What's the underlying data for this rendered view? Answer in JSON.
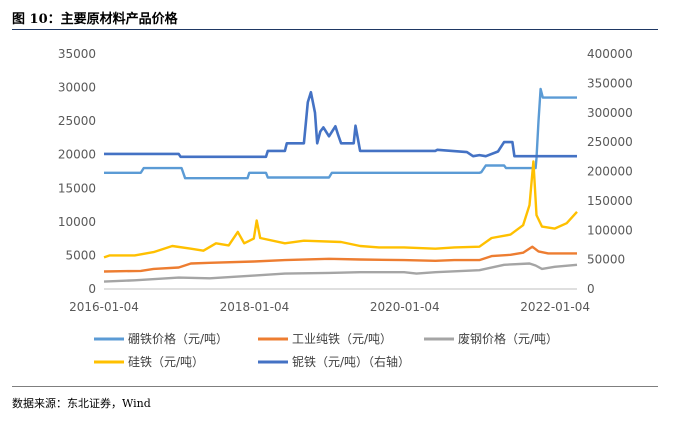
{
  "figure": {
    "title": "图 10：主要原材料产品价格",
    "source": "数据来源：东北证券，Wind"
  },
  "chart_data": {
    "type": "line",
    "x_ticks": [
      "2016-01-04",
      "2018-01-04",
      "2020-01-04",
      "2022-01-04"
    ],
    "x_range": [
      "2016-01-04",
      "2022-04-20"
    ],
    "y_left": {
      "ticks": [
        0,
        5000,
        10000,
        15000,
        20000,
        25000,
        30000,
        35000
      ],
      "range": [
        0,
        35000
      ]
    },
    "y_right": {
      "ticks": [
        0,
        50000,
        100000,
        150000,
        200000,
        250000,
        300000,
        350000,
        400000
      ],
      "range": [
        0,
        400000
      ]
    },
    "grid": false,
    "legend_position": "bottom",
    "series": [
      {
        "name": "硼铁价格（元/吨）",
        "color": "#5b9bd5",
        "axis": "left",
        "step": true,
        "points": [
          [
            "2016-01-04",
            17300
          ],
          [
            "2016-07-01",
            17300
          ],
          [
            "2016-07-15",
            18000
          ],
          [
            "2017-01-15",
            18000
          ],
          [
            "2017-02-01",
            16500
          ],
          [
            "2017-12-01",
            16500
          ],
          [
            "2017-12-10",
            17300
          ],
          [
            "2018-03-01",
            17300
          ],
          [
            "2018-03-10",
            16600
          ],
          [
            "2019-01-01",
            16600
          ],
          [
            "2019-01-15",
            17300
          ],
          [
            "2020-01-01",
            17300
          ],
          [
            "2021-01-01",
            17300
          ],
          [
            "2021-01-10",
            17400
          ],
          [
            "2021-02-01",
            18400
          ],
          [
            "2021-05-01",
            18400
          ],
          [
            "2021-05-10",
            18000
          ],
          [
            "2021-10-01",
            18000
          ],
          [
            "2021-10-05",
            19500
          ],
          [
            "2021-10-15",
            25000
          ],
          [
            "2021-10-25",
            29800
          ],
          [
            "2021-11-05",
            28500
          ],
          [
            "2022-04-20",
            28500
          ]
        ]
      },
      {
        "name": "工业纯铁（元/吨）",
        "color": "#ed7d31",
        "axis": "left",
        "points": [
          [
            "2016-01-04",
            2600
          ],
          [
            "2016-07-01",
            2700
          ],
          [
            "2016-09-01",
            3000
          ],
          [
            "2017-01-01",
            3200
          ],
          [
            "2017-03-01",
            3800
          ],
          [
            "2017-06-01",
            3900
          ],
          [
            "2018-01-01",
            4100
          ],
          [
            "2018-06-01",
            4300
          ],
          [
            "2019-01-01",
            4500
          ],
          [
            "2019-06-01",
            4400
          ],
          [
            "2020-01-01",
            4300
          ],
          [
            "2020-06-01",
            4200
          ],
          [
            "2020-09-01",
            4300
          ],
          [
            "2021-01-01",
            4300
          ],
          [
            "2021-03-01",
            4900
          ],
          [
            "2021-06-01",
            5100
          ],
          [
            "2021-08-01",
            5400
          ],
          [
            "2021-09-15",
            6300
          ],
          [
            "2021-10-15",
            5600
          ],
          [
            "2021-12-01",
            5300
          ],
          [
            "2022-04-20",
            5300
          ]
        ]
      },
      {
        "name": "废钢价格（元/吨）",
        "color": "#a5a5a5",
        "axis": "left",
        "points": [
          [
            "2016-01-04",
            1100
          ],
          [
            "2016-06-01",
            1300
          ],
          [
            "2017-01-01",
            1700
          ],
          [
            "2017-06-01",
            1600
          ],
          [
            "2018-01-01",
            2000
          ],
          [
            "2018-06-01",
            2300
          ],
          [
            "2019-01-01",
            2400
          ],
          [
            "2019-06-01",
            2500
          ],
          [
            "2020-01-01",
            2500
          ],
          [
            "2020-03-01",
            2300
          ],
          [
            "2020-06-01",
            2500
          ],
          [
            "2021-01-01",
            2800
          ],
          [
            "2021-05-01",
            3600
          ],
          [
            "2021-09-01",
            3800
          ],
          [
            "2021-10-01",
            3500
          ],
          [
            "2021-11-01",
            3000
          ],
          [
            "2022-01-01",
            3300
          ],
          [
            "2022-04-20",
            3600
          ]
        ]
      },
      {
        "name": "硅铁（元/吨）",
        "color": "#ffc000",
        "axis": "left",
        "points": [
          [
            "2016-01-04",
            4700
          ],
          [
            "2016-02-01",
            5000
          ],
          [
            "2016-06-01",
            5000
          ],
          [
            "2016-09-01",
            5500
          ],
          [
            "2016-12-01",
            6400
          ],
          [
            "2017-03-01",
            6000
          ],
          [
            "2017-05-01",
            5700
          ],
          [
            "2017-07-01",
            6800
          ],
          [
            "2017-09-01",
            6500
          ],
          [
            "2017-10-15",
            8500
          ],
          [
            "2017-11-15",
            6800
          ],
          [
            "2018-01-01",
            7500
          ],
          [
            "2018-01-15",
            10200
          ],
          [
            "2018-02-01",
            7600
          ],
          [
            "2018-06-01",
            6800
          ],
          [
            "2018-09-01",
            7200
          ],
          [
            "2019-03-01",
            7000
          ],
          [
            "2019-06-01",
            6400
          ],
          [
            "2019-09-01",
            6200
          ],
          [
            "2020-01-01",
            6200
          ],
          [
            "2020-06-01",
            6000
          ],
          [
            "2020-09-01",
            6200
          ],
          [
            "2021-01-01",
            6300
          ],
          [
            "2021-03-01",
            7600
          ],
          [
            "2021-06-01",
            8100
          ],
          [
            "2021-08-01",
            9500
          ],
          [
            "2021-09-01",
            12500
          ],
          [
            "2021-09-20",
            19000
          ],
          [
            "2021-10-05",
            11000
          ],
          [
            "2021-11-01",
            9300
          ],
          [
            "2022-01-01",
            9000
          ],
          [
            "2022-03-01",
            9800
          ],
          [
            "2022-04-20",
            11500
          ]
        ]
      },
      {
        "name": "铌铁（元/吨）（右轴）",
        "color": "#4472c4",
        "axis": "right",
        "step": true,
        "points": [
          [
            "2016-01-04",
            230000
          ],
          [
            "2017-01-01",
            230000
          ],
          [
            "2017-01-10",
            225000
          ],
          [
            "2018-03-01",
            225000
          ],
          [
            "2018-03-10",
            235000
          ],
          [
            "2018-06-01",
            235000
          ],
          [
            "2018-06-10",
            248000
          ],
          [
            "2018-09-01",
            248000
          ],
          [
            "2018-09-10",
            280000
          ],
          [
            "2018-09-20",
            318000
          ],
          [
            "2018-10-05",
            335000
          ],
          [
            "2018-10-25",
            300000
          ],
          [
            "2018-11-05",
            248000
          ],
          [
            "2018-11-20",
            268000
          ],
          [
            "2018-12-05",
            275000
          ],
          [
            "2019-01-01",
            260000
          ],
          [
            "2019-02-01",
            277000
          ],
          [
            "2019-02-15",
            262000
          ],
          [
            "2019-03-01",
            248000
          ],
          [
            "2019-05-01",
            248000
          ],
          [
            "2019-05-10",
            278000
          ],
          [
            "2019-06-01",
            235000
          ],
          [
            "2020-06-01",
            235000
          ],
          [
            "2020-06-10",
            237000
          ],
          [
            "2020-11-01",
            233000
          ],
          [
            "2020-12-01",
            226000
          ],
          [
            "2021-01-01",
            228000
          ],
          [
            "2021-02-01",
            226000
          ],
          [
            "2021-04-01",
            234000
          ],
          [
            "2021-05-01",
            250000
          ],
          [
            "2021-06-10",
            250000
          ],
          [
            "2021-06-20",
            226000
          ],
          [
            "2022-04-20",
            226000
          ]
        ]
      }
    ]
  }
}
